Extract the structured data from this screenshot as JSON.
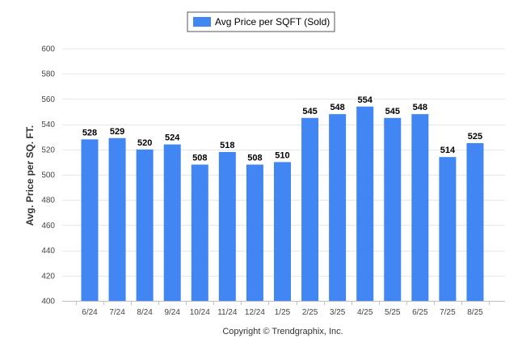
{
  "legend": {
    "label": "Avg Price per SQFT (Sold)"
  },
  "credit": "Copyright © Trendgraphix, Inc.",
  "colors": {
    "bar": "#4286f4",
    "grid": "#e6e6e6",
    "axis": "#c0c0c0"
  },
  "chart_data": {
    "type": "bar",
    "title": "",
    "xlabel": "",
    "ylabel": "Avg. Price per SQ. FT.",
    "ylim": [
      400,
      600
    ],
    "yticks": [
      400,
      420,
      440,
      460,
      480,
      500,
      520,
      540,
      560,
      580,
      600
    ],
    "grid": true,
    "legend_position": "top-center",
    "categories": [
      "6/24",
      "7/24",
      "8/24",
      "9/24",
      "10/24",
      "11/24",
      "12/24",
      "1/25",
      "2/25",
      "3/25",
      "4/25",
      "5/25",
      "6/25",
      "7/25",
      "8/25"
    ],
    "series": [
      {
        "name": "Avg Price per SQFT (Sold)",
        "values": [
          528,
          529,
          520,
          524,
          508,
          518,
          508,
          510,
          545,
          548,
          554,
          545,
          548,
          514,
          525
        ]
      }
    ]
  }
}
